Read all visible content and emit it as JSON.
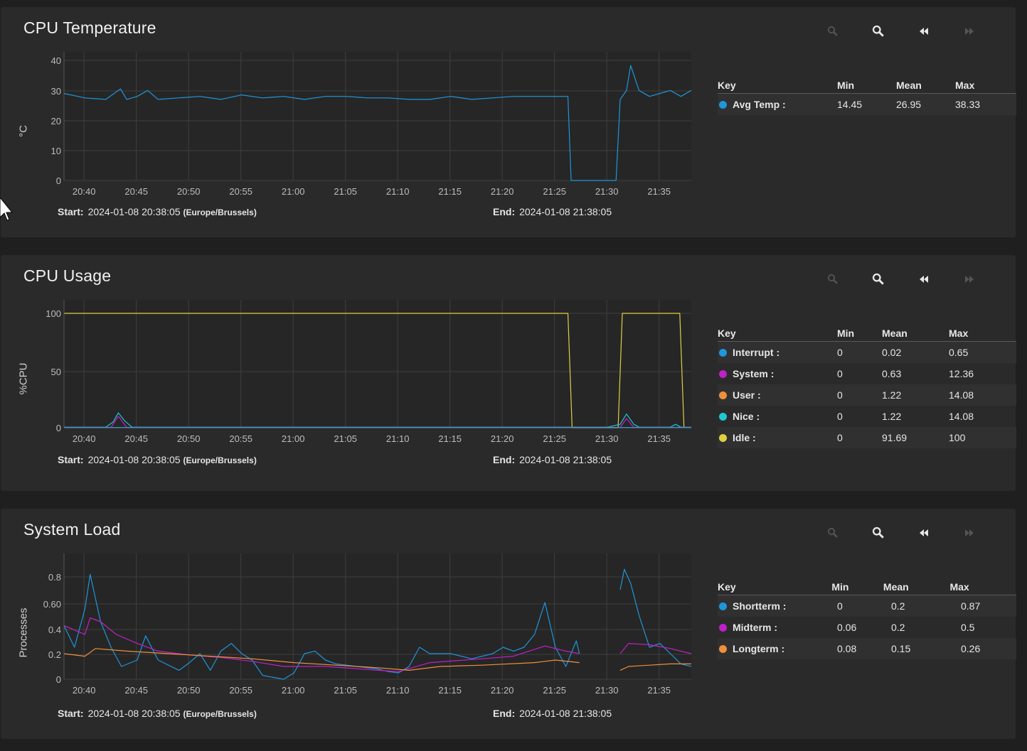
{
  "legend_header": {
    "key": "Key",
    "min": "Min",
    "mean": "Mean",
    "max": "Max"
  },
  "range_labels": {
    "start": "Start:",
    "end": "End:"
  },
  "toolbar_icons": [
    "zoom-out-icon",
    "zoom-in-icon",
    "step-back-icon",
    "step-forward-icon"
  ],
  "panels": [
    {
      "title": "CPU Temperature",
      "ylabel": "°C",
      "start": "2024-01-08 20:38:05",
      "timezone": "(Europe/Brussels)",
      "end": "2024-01-08 21:38:05",
      "legend": [
        {
          "name": "Avg Temp :",
          "color": "#1e96dc",
          "min": "14.45",
          "mean": "26.95",
          "max": "38.33"
        }
      ]
    },
    {
      "title": "CPU Usage",
      "ylabel": "%CPU",
      "start": "2024-01-08 20:38:05",
      "timezone": "(Europe/Brussels)",
      "end": "2024-01-08 21:38:05",
      "legend": [
        {
          "name": "Interrupt :",
          "color": "#1e96dc",
          "min": "0",
          "mean": "0.02",
          "max": "0.65"
        },
        {
          "name": "System :",
          "color": "#c020c8",
          "min": "0",
          "mean": "0.63",
          "max": "12.36"
        },
        {
          "name": "User :",
          "color": "#f0903a",
          "min": "0",
          "mean": "1.22",
          "max": "14.08"
        },
        {
          "name": "Nice :",
          "color": "#1ec8d2",
          "min": "0",
          "mean": "1.22",
          "max": "14.08"
        },
        {
          "name": "Idle :",
          "color": "#e0d040",
          "min": "0",
          "mean": "91.69",
          "max": "100"
        }
      ]
    },
    {
      "title": "System Load",
      "ylabel": "Processes",
      "start": "2024-01-08 20:38:05",
      "timezone": "(Europe/Brussels)",
      "end": "2024-01-08 21:38:05",
      "legend": [
        {
          "name": "Shortterm :",
          "color": "#1e96dc",
          "min": "0",
          "mean": "0.2",
          "max": "0.87"
        },
        {
          "name": "Midterm :",
          "color": "#c020c8",
          "min": "0.06",
          "mean": "0.2",
          "max": "0.5"
        },
        {
          "name": "Longterm :",
          "color": "#f0903a",
          "min": "0.08",
          "mean": "0.15",
          "max": "0.26"
        }
      ]
    }
  ],
  "chart_data": [
    {
      "type": "line",
      "xlabel": "",
      "ylabel": "°C",
      "x_ticks": [
        "20:40",
        "20:45",
        "20:50",
        "20:55",
        "21:00",
        "21:05",
        "21:10",
        "21:15",
        "21:20",
        "21:25",
        "21:30",
        "21:35"
      ],
      "y_ticks": [
        "0",
        "10",
        "20",
        "30",
        "40"
      ],
      "ylim": [
        0,
        40
      ],
      "xlim_minutes": [
        "20:38:05",
        "21:38:05"
      ],
      "series": [
        {
          "name": "Avg Temp",
          "color": "#1e96dc",
          "points": [
            [
              0,
              29
            ],
            [
              2,
              27.5
            ],
            [
              4,
              27
            ],
            [
              5.4,
              30.5
            ],
            [
              6,
              27
            ],
            [
              7,
              28
            ],
            [
              8,
              30
            ],
            [
              9,
              27
            ],
            [
              11,
              27.5
            ],
            [
              13,
              28
            ],
            [
              15,
              27
            ],
            [
              17,
              28.5
            ],
            [
              19,
              27.5
            ],
            [
              21,
              28
            ],
            [
              23,
              27
            ],
            [
              25,
              28
            ],
            [
              27,
              28
            ],
            [
              29,
              27.5
            ],
            [
              31,
              27.5
            ],
            [
              33,
              27
            ],
            [
              35,
              27
            ],
            [
              37,
              28
            ],
            [
              39,
              27
            ],
            [
              41,
              27.5
            ],
            [
              43,
              28
            ],
            [
              45,
              28
            ],
            [
              47,
              28
            ],
            [
              48.2,
              28
            ],
            [
              48.5,
              0
            ],
            [
              52.8,
              0
            ],
            [
              53.2,
              27
            ],
            [
              53.8,
              30
            ],
            [
              54.2,
              38.3
            ],
            [
              55,
              30
            ],
            [
              56,
              28
            ],
            [
              57,
              29
            ],
            [
              58,
              30
            ],
            [
              59,
              28
            ],
            [
              60,
              30
            ]
          ]
        }
      ]
    },
    {
      "type": "line",
      "xlabel": "",
      "ylabel": "%CPU",
      "x_ticks": [
        "20:40",
        "20:45",
        "20:50",
        "20:55",
        "21:00",
        "21:05",
        "21:10",
        "21:15",
        "21:20",
        "21:25",
        "21:30",
        "21:35"
      ],
      "y_ticks": [
        "0",
        "50",
        "100"
      ],
      "ylim": [
        0,
        100
      ],
      "series": [
        {
          "name": "Idle",
          "color": "#e0d040",
          "points": [
            [
              0,
              100
            ],
            [
              48.2,
              100
            ],
            [
              48.6,
              0
            ],
            [
              53,
              0
            ],
            [
              53.4,
              100
            ],
            [
              58.9,
              100
            ],
            [
              59.3,
              0
            ]
          ]
        },
        {
          "name": "Nice",
          "color": "#1ec8d2",
          "points": [
            [
              0,
              0.5
            ],
            [
              4,
              0.5
            ],
            [
              4.7,
              5
            ],
            [
              5.2,
              13
            ],
            [
              5.8,
              6
            ],
            [
              6.5,
              0.5
            ],
            [
              20,
              0.5
            ],
            [
              40,
              0.5
            ],
            [
              52,
              0.5
            ],
            [
              53.2,
              3
            ],
            [
              53.8,
              12
            ],
            [
              54.5,
              3
            ],
            [
              55,
              0.5
            ],
            [
              58,
              0.5
            ],
            [
              58.5,
              3
            ],
            [
              59,
              0.5
            ],
            [
              60,
              0.5
            ]
          ]
        },
        {
          "name": "System",
          "color": "#c020c8",
          "points": [
            [
              0,
              0.3
            ],
            [
              4.5,
              0.3
            ],
            [
              5.2,
              10
            ],
            [
              6,
              0.3
            ],
            [
              53.2,
              0.3
            ],
            [
              53.8,
              8
            ],
            [
              54.5,
              0.3
            ],
            [
              60,
              0.3
            ]
          ]
        },
        {
          "name": "User",
          "color": "#f0903a",
          "points": [
            [
              0,
              0.2
            ],
            [
              60,
              0.2
            ]
          ]
        },
        {
          "name": "Interrupt",
          "color": "#1e96dc",
          "points": [
            [
              0,
              0.1
            ],
            [
              60,
              0.1
            ]
          ]
        }
      ]
    },
    {
      "type": "line",
      "xlabel": "",
      "ylabel": "Processes",
      "x_ticks": [
        "20:40",
        "20:45",
        "20:50",
        "20:55",
        "21:00",
        "21:05",
        "21:10",
        "21:15",
        "21:20",
        "21:25",
        "21:30",
        "21:35"
      ],
      "y_ticks": [
        "0",
        "0.2",
        "0.4",
        "0.60",
        "0.8"
      ],
      "ylim": [
        0,
        0.9
      ],
      "series": [
        {
          "name": "Shortterm",
          "color": "#1e96dc",
          "points": [
            [
              0,
              0.42
            ],
            [
              1,
              0.25
            ],
            [
              2,
              0.55
            ],
            [
              2.5,
              0.82
            ],
            [
              3.5,
              0.45
            ],
            [
              4.5,
              0.25
            ],
            [
              5.5,
              0.1
            ],
            [
              7,
              0.15
            ],
            [
              7.8,
              0.34
            ],
            [
              9,
              0.15
            ],
            [
              11,
              0.07
            ],
            [
              12,
              0.13
            ],
            [
              13,
              0.2
            ],
            [
              14,
              0.07
            ],
            [
              15,
              0.22
            ],
            [
              16,
              0.28
            ],
            [
              17,
              0.2
            ],
            [
              18,
              0.15
            ],
            [
              19,
              0.03
            ],
            [
              21,
              0.0
            ],
            [
              22,
              0.05
            ],
            [
              23,
              0.2
            ],
            [
              24,
              0.22
            ],
            [
              25,
              0.15
            ],
            [
              26,
              0.12
            ],
            [
              28,
              0.1
            ],
            [
              30,
              0.08
            ],
            [
              31,
              0.06
            ],
            [
              32,
              0.05
            ],
            [
              33,
              0.1
            ],
            [
              34,
              0.25
            ],
            [
              35,
              0.2
            ],
            [
              37,
              0.2
            ],
            [
              39,
              0.16
            ],
            [
              41,
              0.2
            ],
            [
              42,
              0.25
            ],
            [
              43,
              0.22
            ],
            [
              44,
              0.25
            ],
            [
              45,
              0.35
            ],
            [
              46,
              0.6
            ],
            [
              47,
              0.25
            ],
            [
              48,
              0.1
            ],
            [
              49,
              0.3
            ],
            [
              49.3,
              0.2
            ]
          ],
          "gap_after_index": 43
        },
        {
          "name": "Shortterm (resumed)",
          "color": "#1e96dc",
          "points": [
            [
              53.2,
              0.7
            ],
            [
              53.6,
              0.86
            ],
            [
              54.2,
              0.75
            ],
            [
              55,
              0.5
            ],
            [
              56,
              0.25
            ],
            [
              57,
              0.28
            ],
            [
              58,
              0.2
            ],
            [
              59,
              0.12
            ],
            [
              60,
              0.1
            ]
          ]
        },
        {
          "name": "Midterm",
          "color": "#c020c8",
          "points": [
            [
              0,
              0.42
            ],
            [
              2,
              0.35
            ],
            [
              2.5,
              0.48
            ],
            [
              3.5,
              0.45
            ],
            [
              5,
              0.35
            ],
            [
              7,
              0.28
            ],
            [
              9,
              0.22
            ],
            [
              12,
              0.19
            ],
            [
              15,
              0.17
            ],
            [
              18,
              0.14
            ],
            [
              21,
              0.1
            ],
            [
              25,
              0.1
            ],
            [
              30,
              0.07
            ],
            [
              32,
              0.06
            ],
            [
              35,
              0.13
            ],
            [
              40,
              0.16
            ],
            [
              43,
              0.18
            ],
            [
              46,
              0.26
            ],
            [
              48,
              0.22
            ],
            [
              49.3,
              0.2
            ]
          ]
        },
        {
          "name": "Midterm (resumed)",
          "color": "#c020c8",
          "points": [
            [
              53.2,
              0.2
            ],
            [
              54,
              0.28
            ],
            [
              56,
              0.27
            ],
            [
              58,
              0.24
            ],
            [
              60,
              0.2
            ]
          ]
        },
        {
          "name": "Longterm",
          "color": "#f0903a",
          "points": [
            [
              0,
              0.2
            ],
            [
              2,
              0.18
            ],
            [
              3,
              0.24
            ],
            [
              6,
              0.22
            ],
            [
              10,
              0.2
            ],
            [
              14,
              0.18
            ],
            [
              18,
              0.16
            ],
            [
              22,
              0.13
            ],
            [
              26,
              0.11
            ],
            [
              30,
              0.09
            ],
            [
              33,
              0.07
            ],
            [
              36,
              0.1
            ],
            [
              40,
              0.11
            ],
            [
              45,
              0.13
            ],
            [
              47,
              0.15
            ],
            [
              49.3,
              0.13
            ]
          ]
        },
        {
          "name": "Longterm (resumed)",
          "color": "#f0903a",
          "points": [
            [
              53.2,
              0.07
            ],
            [
              54,
              0.1
            ],
            [
              56,
              0.11
            ],
            [
              58,
              0.12
            ],
            [
              60,
              0.12
            ]
          ]
        }
      ]
    }
  ]
}
